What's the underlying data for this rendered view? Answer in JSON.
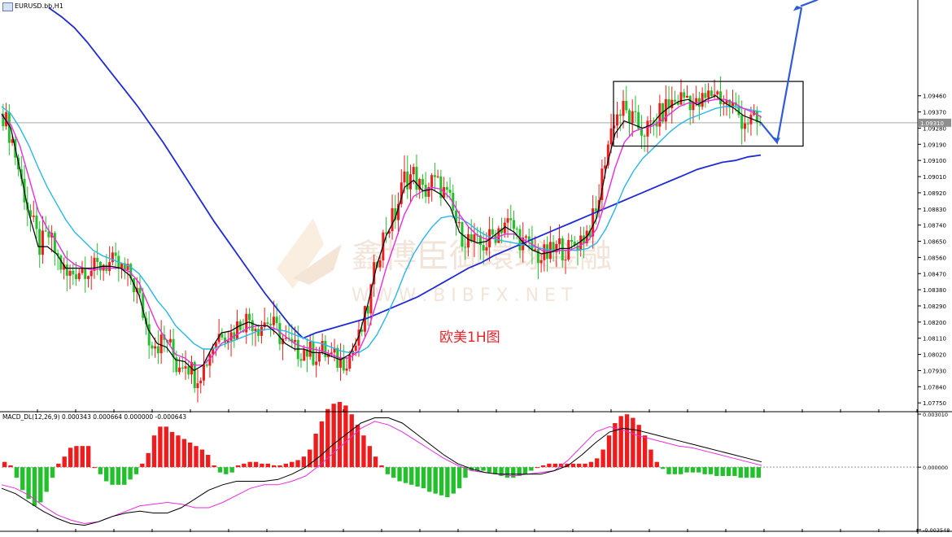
{
  "chart_title": "EURUSD.bb,H1",
  "annotation": "欧美1H图",
  "watermark": {
    "text": "鑫博臣御環球金融",
    "url": "W W W . B I B F X . N E T"
  },
  "colors": {
    "bull": "#ee1c1c",
    "bear": "#22c02a",
    "ma_black": "#000000",
    "ma_magenta": "#e82ce0",
    "ma_cyan": "#29b6e8",
    "ma_blue": "#1e2bd6",
    "arrow": "#2e5bd6",
    "current_line": "#a9a9a9"
  },
  "chart_data": [
    {
      "type": "candlestick",
      "symbol": "EURUSD.bb",
      "timeframe": "H1",
      "ylim": [
        1.0771,
        1.0993
      ],
      "y_ticks": [
        "1.09460",
        "1.09370",
        "1.09280",
        "1.09190",
        "1.09100",
        "1.09010",
        "1.08920",
        "1.08830",
        "1.08740",
        "1.08650",
        "1.08560",
        "1.08470",
        "1.08380",
        "1.08290",
        "1.08200",
        "1.08110",
        "1.08020",
        "1.07930",
        "1.07840",
        "1.07750"
      ],
      "current_price": "1.09310",
      "closes": [
        1.0936,
        1.0921,
        1.0898,
        1.0878,
        1.0862,
        1.0868,
        1.0855,
        1.0845,
        1.0849,
        1.0851,
        1.0849,
        1.0853,
        1.0852,
        1.0849,
        1.0845,
        1.0832,
        1.0812,
        1.0808,
        1.081,
        1.0796,
        1.08,
        1.079,
        1.0795,
        1.0808,
        1.0816,
        1.0813,
        1.082,
        1.0822,
        1.0818,
        1.0821,
        1.0815,
        1.0808,
        1.0804,
        1.0805,
        1.0802,
        1.0804,
        1.08,
        1.0798,
        1.0802,
        1.081,
        1.0828,
        1.0856,
        1.0872,
        1.088,
        1.09,
        1.0902,
        1.0892,
        1.0898,
        1.0895,
        1.0886,
        1.087,
        1.0866,
        1.0862,
        1.0864,
        1.087,
        1.0876,
        1.0872,
        1.0864,
        1.086,
        1.0856,
        1.0858,
        1.0862,
        1.086,
        1.0865,
        1.087,
        1.088,
        1.0912,
        1.0934,
        1.0938,
        1.0932,
        1.0927,
        1.0928,
        1.0935,
        1.0941,
        1.0944,
        1.0946,
        1.094,
        1.0944,
        1.0949,
        1.0943,
        1.094,
        1.0933,
        1.0932,
        1.093
      ],
      "ma_fast": [
        1.0936,
        1.0928,
        1.0905,
        1.088,
        1.0862,
        1.0862,
        1.0858,
        1.085,
        1.085,
        1.085,
        1.085,
        1.0851,
        1.0851,
        1.085,
        1.0846,
        1.0835,
        1.0816,
        1.0808,
        1.0806,
        1.0799,
        1.0798,
        1.0793,
        1.0796,
        1.0806,
        1.0814,
        1.0815,
        1.0818,
        1.082,
        1.0818,
        1.0818,
        1.0814,
        1.0808,
        1.0805,
        1.0805,
        1.0803,
        1.0803,
        1.0801,
        1.0799,
        1.0802,
        1.0812,
        1.083,
        1.0852,
        1.0868,
        1.0878,
        1.0895,
        1.0899,
        1.0893,
        1.0894,
        1.0891,
        1.0884,
        1.087,
        1.0866,
        1.0864,
        1.0865,
        1.0869,
        1.0873,
        1.087,
        1.0864,
        1.086,
        1.0858,
        1.0859,
        1.0861,
        1.0861,
        1.0864,
        1.0868,
        1.0878,
        1.0905,
        1.0925,
        1.0932,
        1.093,
        1.0928,
        1.093,
        1.0936,
        1.094,
        1.0943,
        1.0944,
        1.0941,
        1.0944,
        1.0946,
        1.0942,
        1.0939,
        1.0935,
        1.0933,
        1.0931
      ],
      "ma_mid": [
        1.0935,
        1.093,
        1.0918,
        1.09,
        1.0882,
        1.0872,
        1.0865,
        1.0856,
        1.0852,
        1.085,
        1.0849,
        1.085,
        1.085,
        1.085,
        1.0848,
        1.0842,
        1.083,
        1.0818,
        1.081,
        1.0802,
        1.08,
        1.0796,
        1.0796,
        1.0801,
        1.0808,
        1.0811,
        1.0814,
        1.0817,
        1.0818,
        1.0818,
        1.0816,
        1.0812,
        1.0808,
        1.0806,
        1.0805,
        1.0804,
        1.0802,
        1.08,
        1.08,
        1.0804,
        1.0815,
        1.0832,
        1.085,
        1.0865,
        1.088,
        1.089,
        1.0893,
        1.0895,
        1.0894,
        1.0889,
        1.088,
        1.0873,
        1.0868,
        1.0866,
        1.0867,
        1.0869,
        1.0869,
        1.0866,
        1.0863,
        1.086,
        1.0859,
        1.086,
        1.086,
        1.0862,
        1.0865,
        1.0872,
        1.0888,
        1.0906,
        1.092,
        1.0926,
        1.0928,
        1.0929,
        1.0932,
        1.0936,
        1.094,
        1.0942,
        1.0942,
        1.0943,
        1.0944,
        1.0944,
        1.0942,
        1.0939,
        1.0937,
        1.0934
      ],
      "ma_slow": [
        1.094,
        1.0936,
        1.0928,
        1.0918,
        1.0906,
        1.0895,
        1.0886,
        1.0877,
        1.087,
        1.0865,
        1.086,
        1.0857,
        1.0855,
        1.0853,
        1.0851,
        1.0847,
        1.084,
        1.0832,
        1.0826,
        1.0818,
        1.0813,
        1.0808,
        1.0805,
        1.0805,
        1.0807,
        1.0809,
        1.0811,
        1.0813,
        1.0815,
        1.0816,
        1.0816,
        1.0815,
        1.0813,
        1.0811,
        1.0809,
        1.0808,
        1.0806,
        1.0804,
        1.0803,
        1.0803,
        1.0806,
        1.0813,
        1.0823,
        1.0834,
        1.0847,
        1.0858,
        1.0866,
        1.0873,
        1.0878,
        1.0879,
        1.0878,
        1.0875,
        1.0871,
        1.0868,
        1.0866,
        1.0865,
        1.0864,
        1.0863,
        1.0862,
        1.0861,
        1.086,
        1.086,
        1.086,
        1.086,
        1.0861,
        1.0864,
        1.0872,
        1.0883,
        1.0895,
        1.0904,
        1.0911,
        1.0916,
        1.0921,
        1.0926,
        1.093,
        1.0933,
        1.0935,
        1.0937,
        1.0939,
        1.094,
        1.094,
        1.0939,
        1.0938,
        1.0937
      ],
      "ma_long": [
        1.0995,
        1.099,
        1.0984,
        1.0976,
        1.0967,
        1.0958,
        1.0949,
        1.094,
        1.093,
        1.092,
        1.0909,
        1.0898,
        1.0887,
        1.0876,
        1.0866,
        1.0856,
        1.0846,
        1.0836,
        1.0827,
        1.0818,
        1.0811,
        1.0814,
        1.0816,
        1.0818,
        1.082,
        1.0822,
        1.0825,
        1.0828,
        1.0831,
        1.0834,
        1.0838,
        1.0842,
        1.0846,
        1.085,
        1.0853,
        1.0857,
        1.086,
        1.0863,
        1.0866,
        1.0869,
        1.0872,
        1.0875,
        1.0878,
        1.0881,
        1.0884,
        1.0887,
        1.089,
        1.0893,
        1.0896,
        1.0899,
        1.0902,
        1.0905,
        1.0907,
        1.0909,
        1.091,
        1.0912,
        1.0913
      ],
      "projection_arrow": [
        1.0931,
        1.092,
        1.0995
      ]
    },
    {
      "type": "macd",
      "label": "MACD_DL(12,26,9) 0.000343 0.000664 0.000000 -0.000643",
      "ylim": [
        -0.003548,
        0.00301
      ],
      "y_ticks": [
        "0.003010",
        "0.000000",
        "-0.003548"
      ],
      "histogram": [
        0.0003,
        0.0001,
        -0.0006,
        -0.0013,
        -0.0018,
        -0.0022,
        -0.002,
        -0.0014,
        -0.0006,
        0.0002,
        0.0006,
        0.0011,
        0.0012,
        0.0012,
        0.0012,
        0.0,
        -0.0004,
        -0.0008,
        -0.001,
        -0.001,
        -0.001,
        -0.0007,
        -0.0004,
        0.0002,
        0.0008,
        0.0018,
        0.0023,
        0.0023,
        0.002,
        0.0018,
        0.0016,
        0.0014,
        0.0012,
        0.001,
        0.0007,
        0.0001,
        -0.0003,
        -0.0004,
        -0.0003,
        0.0001,
        0.0002,
        0.0003,
        0.0003,
        0.0002,
        0.0002,
        0.0001,
        0.0001,
        0.0002,
        0.0003,
        0.0004,
        0.0006,
        0.001,
        0.0019,
        0.0026,
        0.0033,
        0.0036,
        0.0037,
        0.0035,
        0.003,
        0.0024,
        0.0018,
        0.0012,
        0.0006,
        0.0001,
        -0.0004,
        -0.0006,
        -0.0008,
        -0.0009,
        -0.001,
        -0.0011,
        -0.0012,
        -0.0014,
        -0.0015,
        -0.0016,
        -0.0017,
        -0.0015,
        -0.0012,
        -0.0006,
        -0.0002,
        -0.0002,
        -0.0002,
        -0.0003,
        -0.0004,
        -0.0005,
        -0.0006,
        -0.0006,
        -0.0005,
        -0.0004,
        -0.0002,
        0.0,
        0.0001,
        0.0002,
        0.0002,
        0.0002,
        0.0002,
        0.0002,
        0.0002,
        0.0002,
        0.0003,
        0.0005,
        0.001,
        0.0018,
        0.0025,
        0.0029,
        0.003,
        0.0028,
        0.0024,
        0.0018,
        0.001,
        0.0003,
        -0.0001,
        -0.0004,
        -0.0004,
        -0.0004,
        -0.0003,
        -0.0003,
        -0.0003,
        -0.0004,
        -0.0004,
        -0.0005,
        -0.0005,
        -0.0005,
        -0.0005,
        -0.0006,
        -0.0006,
        -0.0006,
        -0.0006
      ],
      "macd_line": [
        -0.001,
        -0.0012,
        -0.0016,
        -0.0022,
        -0.0027,
        -0.003,
        -0.0032,
        -0.0031,
        -0.0028,
        -0.0025,
        -0.0022,
        -0.0021,
        -0.002,
        -0.0021,
        -0.0023,
        -0.0023,
        -0.002,
        -0.0016,
        -0.0012,
        -0.001,
        -0.001,
        -0.0008,
        -0.0005,
        0.0001,
        0.0008,
        0.0015,
        0.0022,
        0.0026,
        0.0024,
        0.002,
        0.0015,
        0.001,
        0.0005,
        0.0001,
        -0.0002,
        -0.0003,
        -0.0004,
        -0.0005,
        -0.0004,
        -0.0003,
        -0.0002,
        0.0004,
        0.0012,
        0.002,
        0.0023,
        0.0021,
        0.0018,
        0.0016,
        0.0014,
        0.0012,
        0.0011,
        0.0009,
        0.0007,
        0.0005,
        0.0003,
        0.0001
      ],
      "signal_line": [
        -0.0012,
        -0.0015,
        -0.002,
        -0.0025,
        -0.0029,
        -0.0032,
        -0.0033,
        -0.0031,
        -0.0028,
        -0.0026,
        -0.0025,
        -0.0026,
        -0.0026,
        -0.0023,
        -0.0018,
        -0.0013,
        -0.001,
        -0.0008,
        -0.0008,
        -0.0008,
        -0.0007,
        -0.0004,
        0.0,
        0.0006,
        0.0013,
        0.0019,
        0.0025,
        0.0028,
        0.0028,
        0.0025,
        0.0019,
        0.0013,
        0.0007,
        0.0002,
        -0.0001,
        -0.0003,
        -0.0004,
        -0.0004,
        -0.0004,
        -0.0004,
        -0.0002,
        0.0001,
        0.0007,
        0.0014,
        0.002,
        0.0022,
        0.0021,
        0.0019,
        0.0017,
        0.0015,
        0.0013,
        0.0011,
        0.0009,
        0.0007,
        0.0005,
        0.0003
      ]
    }
  ]
}
